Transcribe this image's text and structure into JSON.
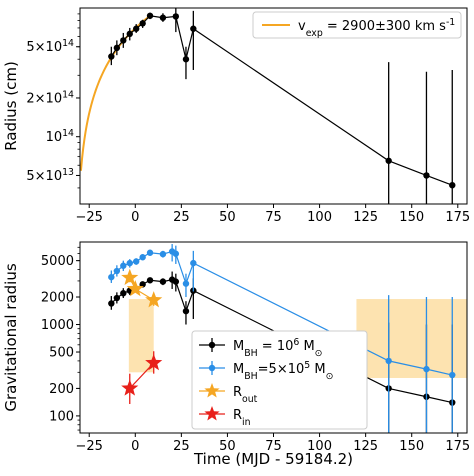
{
  "chart_data": [
    {
      "type": "line",
      "title": "",
      "xlabel": "",
      "ylabel": "Radius (cm)",
      "yscale": "log",
      "xlim": [
        -30,
        180
      ],
      "ylim": [
        30000000000000.0,
        1000000000000000.0
      ],
      "x_ticks": [
        -25,
        0,
        25,
        50,
        75,
        100,
        125,
        150,
        175
      ],
      "y_ticks": [
        {
          "value": 500000000000000.0,
          "label": "5×10^14"
        },
        {
          "value": 200000000000000.0,
          "label": "2×10^14"
        },
        {
          "value": 100000000000000.0,
          "label": "10^14"
        },
        {
          "value": 50000000000000.0,
          "label": "5×10^13"
        }
      ],
      "fit": {
        "name": "v_exp = 2900±300 km s^-1",
        "color": "#f5a623",
        "x_start": -29.5,
        "x_end": 8.0,
        "t0": -32.0,
        "v_km_s": 2900
      },
      "legend": {
        "position": "top-right",
        "entries": [
          "v_exp = 2900±300 km s^-1"
        ]
      },
      "series": [
        {
          "name": "",
          "color": "#000000",
          "marker": "circle",
          "points": [
            {
              "x": -13,
              "y": 420000000000000.0,
              "ylo": 360000000000000.0,
              "yhi": 500000000000000.0
            },
            {
              "x": -10,
              "y": 490000000000000.0,
              "ylo": 430000000000000.0,
              "yhi": 560000000000000.0
            },
            {
              "x": -6.5,
              "y": 560000000000000.0,
              "ylo": 490000000000000.0,
              "yhi": 640000000000000.0
            },
            {
              "x": -3,
              "y": 630000000000000.0,
              "ylo": 560000000000000.0,
              "yhi": 700000000000000.0
            },
            {
              "x": 0.5,
              "y": 690000000000000.0,
              "ylo": 640000000000000.0,
              "yhi": 750000000000000.0
            },
            {
              "x": 4,
              "y": 760000000000000.0,
              "ylo": 700000000000000.0,
              "yhi": 810000000000000.0
            },
            {
              "x": 8,
              "y": 870000000000000.0,
              "ylo": 820000000000000.0,
              "yhi": 920000000000000.0
            },
            {
              "x": 15,
              "y": 840000000000000.0,
              "ylo": 780000000000000.0,
              "yhi": 910000000000000.0
            },
            {
              "x": 22,
              "y": 860000000000000.0,
              "ylo": 650000000000000.0,
              "yhi": 1000000000000000.0
            },
            {
              "x": 27.5,
              "y": 400000000000000.0,
              "ylo": 280000000000000.0,
              "yhi": 500000000000000.0
            },
            {
              "x": 31.5,
              "y": 690000000000000.0,
              "ylo": 330000000000000.0,
              "yhi": 950000000000000.0
            },
            {
              "x": 137.5,
              "y": 65000000000000.0,
              "ylo": 30000000000000.0,
              "yhi": 380000000000000.0
            },
            {
              "x": 158,
              "y": 50000000000000.0,
              "ylo": 30000000000000.0,
              "yhi": 320000000000000.0
            },
            {
              "x": 172,
              "y": 42000000000000.0,
              "ylo": 30000000000000.0,
              "yhi": 330000000000000.0
            }
          ]
        }
      ]
    },
    {
      "type": "line",
      "title": "",
      "xlabel": "Time (MJD - 59184.2)",
      "ylabel": "Gravitational radius",
      "yscale": "log",
      "xlim": [
        -30,
        180
      ],
      "ylim": [
        65,
        8000
      ],
      "x_ticks": [
        -25,
        0,
        25,
        50,
        75,
        100,
        125,
        150,
        175
      ],
      "y_ticks": [
        100,
        200,
        500,
        1000,
        2000,
        5000
      ],
      "legend": {
        "position": "bottom-center",
        "entries": [
          "M_BH = 10^6 M_⊙",
          "M_BH=5×10^5 M_⊙",
          "R_out",
          "R_in"
        ]
      },
      "shaded_regions": [
        {
          "x0": -3.5,
          "x1": 10,
          "y0": 300,
          "y1": 1900,
          "color": "#fde3b0"
        },
        {
          "x0": 120,
          "x1": 180,
          "y0": 260,
          "y1": 1900,
          "color": "#fde3b0"
        }
      ],
      "series": [
        {
          "name": "M_BH = 10^6 M_⊙",
          "color": "#000000",
          "marker": "circle",
          "points": [
            {
              "x": -13,
              "y": 1700,
              "ylo": 1450,
              "yhi": 2050
            },
            {
              "x": -10,
              "y": 1950,
              "ylo": 1700,
              "yhi": 2250
            },
            {
              "x": -6.5,
              "y": 2200,
              "ylo": 1950,
              "yhi": 2500
            },
            {
              "x": -3,
              "y": 2350,
              "ylo": 2100,
              "yhi": 2600
            },
            {
              "x": 0.5,
              "y": 2450,
              "ylo": 2250,
              "yhi": 2650
            },
            {
              "x": 4,
              "y": 2750,
              "ylo": 2550,
              "yhi": 2950
            },
            {
              "x": 8,
              "y": 3050,
              "ylo": 2850,
              "yhi": 3250
            },
            {
              "x": 15,
              "y": 2950,
              "ylo": 2700,
              "yhi": 3200
            },
            {
              "x": 20,
              "y": 3100,
              "ylo": 2450,
              "yhi": 3800
            },
            {
              "x": 22,
              "y": 2950,
              "ylo": 2300,
              "yhi": 3600
            },
            {
              "x": 27.5,
              "y": 1400,
              "ylo": 1000,
              "yhi": 1800
            },
            {
              "x": 31.5,
              "y": 2350,
              "ylo": 1150,
              "yhi": 3200
            },
            {
              "x": 137.5,
              "y": 200,
              "ylo": 65,
              "yhi": 1050
            },
            {
              "x": 158,
              "y": 162,
              "ylo": 65,
              "yhi": 1000
            },
            {
              "x": 172,
              "y": 140,
              "ylo": 65,
              "yhi": 1000
            }
          ]
        },
        {
          "name": "M_BH=5×10^5 M_⊙",
          "color": "#2a8ee6",
          "marker": "circle",
          "points": [
            {
              "x": -13,
              "y": 3300,
              "ylo": 2850,
              "yhi": 3900
            },
            {
              "x": -10,
              "y": 3850,
              "ylo": 3350,
              "yhi": 4450
            },
            {
              "x": -6.5,
              "y": 4400,
              "ylo": 3850,
              "yhi": 5000
            },
            {
              "x": -3,
              "y": 4700,
              "ylo": 4200,
              "yhi": 5200
            },
            {
              "x": 0.5,
              "y": 4900,
              "ylo": 4500,
              "yhi": 5300
            },
            {
              "x": 4,
              "y": 5450,
              "ylo": 5050,
              "yhi": 5850
            },
            {
              "x": 8,
              "y": 6100,
              "ylo": 5700,
              "yhi": 6500
            },
            {
              "x": 15,
              "y": 5900,
              "ylo": 5400,
              "yhi": 6400
            },
            {
              "x": 20,
              "y": 6300,
              "ylo": 4900,
              "yhi": 7600
            },
            {
              "x": 22,
              "y": 5950,
              "ylo": 4600,
              "yhi": 7300
            },
            {
              "x": 27.5,
              "y": 2800,
              "ylo": 2000,
              "yhi": 3600
            },
            {
              "x": 31.5,
              "y": 4700,
              "ylo": 2300,
              "yhi": 6400
            },
            {
              "x": 137.5,
              "y": 400,
              "ylo": 65,
              "yhi": 2100
            },
            {
              "x": 158,
              "y": 325,
              "ylo": 65,
              "yhi": 2000
            },
            {
              "x": 172,
              "y": 280,
              "ylo": 65,
              "yhi": 2000
            }
          ]
        },
        {
          "name": "R_out",
          "color": "#f5a623",
          "marker": "star",
          "points": [
            {
              "x": -3,
              "y": 3250,
              "ylo": 2900,
              "yhi": 3600
            },
            {
              "x": 0,
              "y": 2450,
              "ylo": 2450,
              "yhi": 2450
            },
            {
              "x": 10,
              "y": 1850,
              "ylo": 1600,
              "yhi": 2150
            }
          ]
        },
        {
          "name": "R_in",
          "color": "#e8201a",
          "marker": "star",
          "points": [
            {
              "x": -3,
              "y": 200,
              "ylo": 135,
              "yhi": 290
            },
            {
              "x": 10,
              "y": 380,
              "ylo": 290,
              "yhi": 510
            }
          ]
        }
      ]
    }
  ]
}
